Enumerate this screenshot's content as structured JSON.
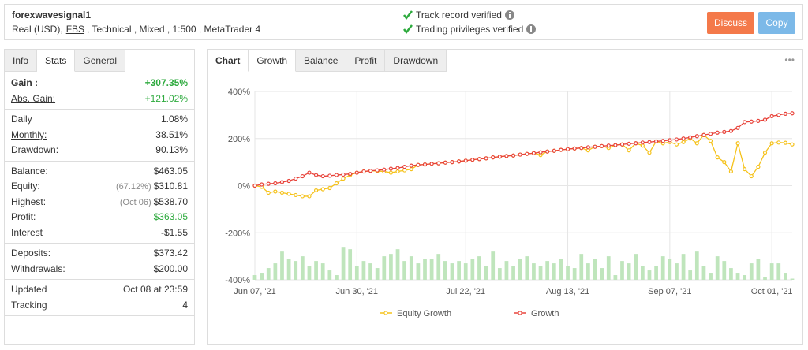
{
  "header": {
    "title": "forexwavesignal1",
    "account": "Real (USD),",
    "broker": "FBS",
    "details": ", Technical , Mixed , 1:500 , MetaTrader 4",
    "verified": [
      "Track record verified",
      "Trading privileges verified"
    ],
    "buttons": [
      "Discuss",
      "Copy"
    ]
  },
  "stats": {
    "tabs": [
      "Info",
      "Stats",
      "General"
    ],
    "active_tab": 1,
    "groups": [
      {
        "rows": [
          {
            "label": "Gain :",
            "value": "+307.35%"
          },
          {
            "label": "Abs. Gain:",
            "value": "+121.02%"
          }
        ]
      },
      {
        "rows": [
          {
            "label": "Daily",
            "value": "1.08%"
          },
          {
            "label": "Monthly:",
            "value": "38.51%"
          },
          {
            "label": "Drawdown:",
            "value": "90.13%"
          }
        ]
      },
      {
        "rows": [
          {
            "label": "Balance:",
            "value": "$463.05"
          },
          {
            "label": "Equity:",
            "note": "(67.12%)",
            "value": "$310.81"
          },
          {
            "label": "Highest:",
            "note": "(Oct 06)",
            "value": "$538.70"
          },
          {
            "label": "Profit:",
            "value": "$363.05"
          },
          {
            "label": "Interest",
            "value": "-$1.55"
          }
        ]
      },
      {
        "rows": [
          {
            "label": "Deposits:",
            "value": "$373.42"
          },
          {
            "label": "Withdrawals:",
            "value": "$200.00"
          }
        ]
      },
      {
        "rows": [
          {
            "label": "Updated",
            "value": "Oct 08 at 23:59"
          },
          {
            "label": "Tracking",
            "value": "4"
          }
        ]
      }
    ]
  },
  "chart_tabs": {
    "tabs": [
      "Chart",
      "Growth",
      "Balance",
      "Profit",
      "Drawdown"
    ],
    "active_tab": 1,
    "more": "•••"
  },
  "chart_data": {
    "type": "line",
    "categories": [
      "Jun 07, '21",
      null,
      null,
      null,
      null,
      null,
      null,
      null,
      null,
      null,
      null,
      null,
      null,
      null,
      null,
      "Jun 30, '21",
      null,
      null,
      null,
      null,
      null,
      null,
      null,
      null,
      null,
      null,
      null,
      null,
      null,
      null,
      null,
      "Jul 22, '21",
      null,
      null,
      null,
      null,
      null,
      null,
      null,
      null,
      null,
      null,
      null,
      null,
      null,
      null,
      "Aug 13, '21",
      null,
      null,
      null,
      null,
      null,
      null,
      null,
      null,
      null,
      null,
      null,
      null,
      null,
      null,
      "Sep 07, '21",
      null,
      null,
      null,
      null,
      null,
      null,
      null,
      null,
      null,
      null,
      null,
      null,
      null,
      null,
      "Oct 01, '21",
      null,
      null,
      null
    ],
    "ylim": [
      -400,
      400
    ],
    "yticks": [
      {
        "value": -400,
        "label": "-400%"
      },
      {
        "value": -200,
        "label": "-200%"
      },
      {
        "value": 0,
        "label": "0%"
      },
      {
        "value": 200,
        "label": "200%"
      },
      {
        "value": 400,
        "label": "400%"
      }
    ],
    "grid": true,
    "bars": {
      "color": "#bfe5bc",
      "values": [
        -380,
        -370,
        -350,
        -330,
        -280,
        -310,
        -320,
        -300,
        -340,
        -320,
        -330,
        -360,
        -380,
        -260,
        -270,
        -340,
        -320,
        -330,
        -350,
        -300,
        -290,
        -270,
        -320,
        -300,
        -330,
        -310,
        -310,
        -290,
        -320,
        -330,
        -320,
        -330,
        -310,
        -300,
        -340,
        -280,
        -350,
        -320,
        -340,
        -310,
        -300,
        -330,
        -340,
        -320,
        -330,
        -310,
        -340,
        -350,
        -290,
        -330,
        -310,
        -350,
        -300,
        -380,
        -320,
        -330,
        -290,
        -340,
        -360,
        -340,
        -300,
        -310,
        -330,
        -290,
        -360,
        -280,
        -340,
        -370,
        -300,
        -320,
        -350,
        -370,
        -380,
        -330,
        -310,
        -390,
        -330,
        -330,
        -370,
        -395
      ]
    },
    "series": [
      {
        "name": "Equity Growth",
        "color": "#f5c21b",
        "values": [
          0,
          -5,
          -30,
          -25,
          -30,
          -35,
          -40,
          -45,
          -45,
          -20,
          -15,
          -10,
          10,
          30,
          45,
          55,
          60,
          63,
          62,
          60,
          55,
          60,
          65,
          70,
          88,
          90,
          93,
          95,
          98,
          100,
          103,
          106,
          110,
          113,
          116,
          120,
          123,
          126,
          128,
          132,
          135,
          138,
          130,
          145,
          148,
          152,
          155,
          158,
          160,
          150,
          165,
          168,
          160,
          172,
          175,
          150,
          180,
          170,
          140,
          188,
          180,
          185,
          175,
          185,
          200,
          180,
          215,
          190,
          120,
          100,
          60,
          180,
          70,
          40,
          80,
          140,
          180,
          183,
          182,
          175
        ]
      },
      {
        "name": "Growth",
        "color": "#e8433a",
        "values": [
          0,
          5,
          8,
          10,
          15,
          20,
          30,
          40,
          55,
          45,
          40,
          42,
          45,
          47,
          50,
          55,
          60,
          63,
          65,
          68,
          72,
          75,
          80,
          85,
          88,
          90,
          93,
          95,
          98,
          100,
          103,
          106,
          110,
          113,
          116,
          120,
          123,
          126,
          128,
          132,
          135,
          138,
          142,
          145,
          148,
          152,
          155,
          158,
          160,
          163,
          165,
          168,
          170,
          172,
          175,
          178,
          180,
          183,
          185,
          188,
          190,
          193,
          196,
          200,
          205,
          210,
          215,
          220,
          225,
          228,
          232,
          245,
          270,
          272,
          275,
          280,
          295,
          300,
          305,
          307
        ]
      }
    ]
  }
}
